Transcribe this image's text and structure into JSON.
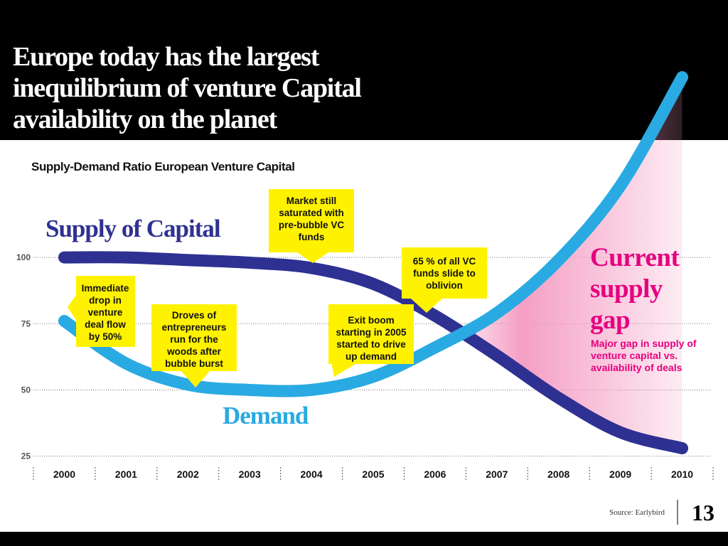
{
  "chart_data": {
    "type": "line",
    "title": [
      "Europe today has the largest",
      "inequilibrium of venture Capital",
      "availability on the planet"
    ],
    "subtitle": "Supply-Demand Ratio European Venture Capital",
    "categories": [
      "2000",
      "2001",
      "2002",
      "2003",
      "2004",
      "2005",
      "2006",
      "2007",
      "2008",
      "2009",
      "2010"
    ],
    "series": [
      {
        "name": "Supply of Capital",
        "color": "#2e3192",
        "values": [
          100,
          100,
          99,
          98,
          96,
          90,
          78,
          63,
          47,
          34,
          28
        ]
      },
      {
        "name": "Demand",
        "color": "#29aae2",
        "values": [
          76,
          60,
          52,
          50,
          50,
          55,
          66,
          79,
          99,
          127,
          168
        ]
      }
    ],
    "ylim": [
      22.5,
      177
    ],
    "yticks": [
      25,
      50,
      75,
      100
    ],
    "grid": true,
    "annotations": [
      [
        "Immediate",
        "drop in",
        "venture",
        "deal flow",
        "by 50%"
      ],
      [
        "Droves of",
        "entrepreneurs",
        "run for the",
        "woods after",
        "bubble burst"
      ],
      [
        "Market still",
        "saturated with",
        "pre-bubble VC",
        "funds"
      ],
      [
        "65 % of all VC",
        "funds slide to",
        "oblivion"
      ],
      [
        "Exit boom",
        "starting in 2005",
        "started to drive",
        "up demand"
      ]
    ],
    "gap_title": [
      "Current",
      "supply",
      "gap"
    ],
    "gap_note": [
      "Major gap in supply of",
      "venture capital vs.",
      "availability of deals"
    ],
    "source": "Source: Earlybird",
    "page_number": "13"
  }
}
